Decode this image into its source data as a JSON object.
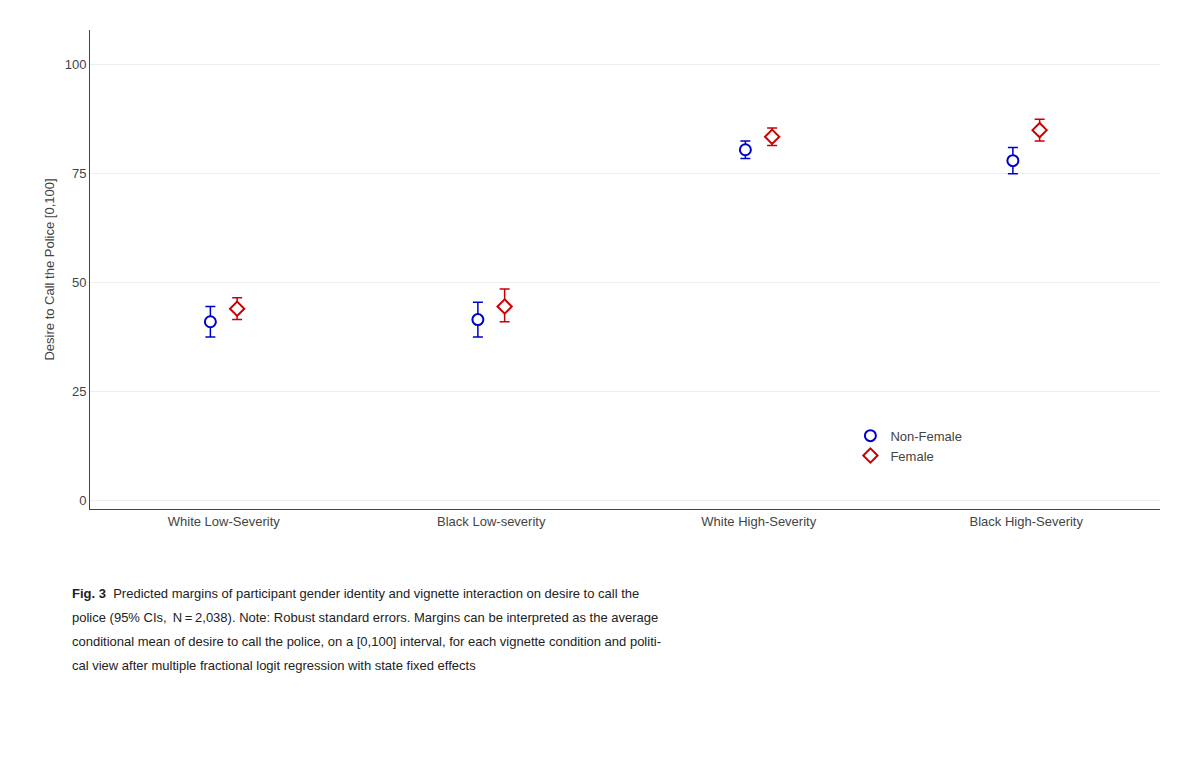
{
  "chart_data": {
    "type": "scatter",
    "categories": [
      "White Low-Severity",
      "Black Low-severity",
      "White High-Severity",
      "Black High-Severity"
    ],
    "series": [
      {
        "name": "Non-Female",
        "color": "#0000cc",
        "marker": "circle",
        "values": [
          41.0,
          41.5,
          80.5,
          78.0
        ],
        "ci_lower": [
          37.5,
          37.5,
          78.5,
          75.0
        ],
        "ci_upper": [
          44.5,
          45.5,
          82.5,
          81.0
        ]
      },
      {
        "name": "Female",
        "color": "#cc0000",
        "marker": "diamond",
        "values": [
          44.0,
          44.5,
          83.5,
          85.0
        ],
        "ci_lower": [
          41.5,
          41.0,
          81.5,
          82.5
        ],
        "ci_upper": [
          46.5,
          48.5,
          85.5,
          87.5
        ]
      }
    ],
    "ylabel": "Desire to Call the Police [0,100]",
    "ylim": [
      -2,
      108
    ],
    "yticks": [
      0,
      25,
      50,
      75,
      100
    ],
    "grid": true,
    "legend": "lower right",
    "caption": {
      "bold": "Fig. 3",
      "lines": [
        "  Predicted margins of participant gender identity and vignette interaction on desire to call the",
        "police (95% CIs,  N = 2,038). Note: Robust standard errors. Margins can be interpreted as the average",
        "conditional mean of desire to call the police, on a [0,100] interval, for each vignette condition and politi-",
        "cal view after multiple fractional logit regression with state fixed effects"
      ]
    }
  }
}
